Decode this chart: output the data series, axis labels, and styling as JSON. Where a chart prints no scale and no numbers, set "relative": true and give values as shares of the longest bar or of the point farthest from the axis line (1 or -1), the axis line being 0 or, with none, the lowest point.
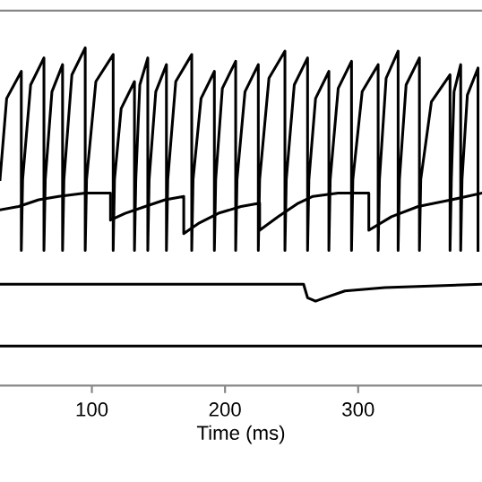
{
  "chart_data": {
    "type": "line",
    "relative": true,
    "xlabel": "Time (ms)",
    "xlim": [
      31,
      393
    ],
    "xticks": [
      100,
      200,
      300
    ],
    "tick_labels": "x",
    "grid": false,
    "marker": "none",
    "line_style": "solid",
    "series": [
      {
        "color": "#000000",
        "x": [
          31,
          36,
          47,
          47,
          48,
          54,
          64,
          64,
          65,
          70,
          78,
          78,
          79,
          85,
          95,
          95,
          96,
          103,
          116,
          116,
          117,
          122,
          132,
          132,
          133,
          136,
          142,
          142,
          143,
          148,
          156,
          156,
          157,
          163,
          175,
          175,
          176,
          182,
          192,
          192,
          193,
          198,
          208,
          208,
          209,
          215,
          225,
          225,
          226,
          233,
          245,
          245,
          246,
          252,
          262,
          262,
          263,
          268,
          278,
          278,
          279,
          285,
          295,
          295,
          296,
          303,
          315,
          315,
          316,
          321,
          330,
          330,
          331,
          336,
          346,
          346,
          347,
          355,
          369,
          369,
          370,
          372,
          377,
          377,
          378,
          382,
          390,
          390
        ],
        "values": [
          0.61,
          0.85,
          0.93,
          0.4,
          0.61,
          0.89,
          0.97,
          0.4,
          0.61,
          0.87,
          0.95,
          0.4,
          0.61,
          0.92,
          1.0,
          0.4,
          0.61,
          0.9,
          0.98,
          0.4,
          0.61,
          0.82,
          0.9,
          0.4,
          0.61,
          0.89,
          0.97,
          0.4,
          0.61,
          0.87,
          0.95,
          0.4,
          0.61,
          0.9,
          0.98,
          0.4,
          0.61,
          0.85,
          0.93,
          0.4,
          0.61,
          0.88,
          0.96,
          0.4,
          0.61,
          0.87,
          0.95,
          0.4,
          0.61,
          0.91,
          0.99,
          0.4,
          0.61,
          0.89,
          0.97,
          0.4,
          0.61,
          0.85,
          0.93,
          0.4,
          0.61,
          0.88,
          0.96,
          0.4,
          0.61,
          0.87,
          0.95,
          0.4,
          0.61,
          0.91,
          0.99,
          0.4,
          0.61,
          0.89,
          0.97,
          0.4,
          0.61,
          0.84,
          0.92,
          0.4,
          0.61,
          0.87,
          0.95,
          0.4,
          0.61,
          0.86,
          0.94,
          0.4
        ]
      },
      {
        "color": "#000000",
        "x": [
          31,
          45,
          60,
          75,
          95,
          114,
          114,
          125,
          140,
          155,
          169,
          169,
          180,
          195,
          212,
          226,
          226,
          240,
          255,
          266,
          285,
          308,
          308,
          325,
          345,
          370,
          393
        ],
        "values": [
          0.52,
          0.53,
          0.55,
          0.56,
          0.57,
          0.57,
          0.49,
          0.51,
          0.53,
          0.55,
          0.56,
          0.45,
          0.48,
          0.51,
          0.53,
          0.54,
          0.46,
          0.5,
          0.54,
          0.56,
          0.57,
          0.57,
          0.46,
          0.5,
          0.53,
          0.55,
          0.57
        ]
      },
      {
        "color": "#000000",
        "x": [
          31,
          100,
          200,
          259,
          262,
          268,
          275,
          290,
          320,
          393
        ],
        "values": [
          0.3,
          0.3,
          0.3,
          0.3,
          0.26,
          0.25,
          0.26,
          0.28,
          0.29,
          0.3
        ]
      },
      {
        "color": "#000000",
        "x": [
          31,
          150,
          300,
          393
        ],
        "values": [
          0.117,
          0.117,
          0.117,
          0.117
        ]
      }
    ]
  }
}
